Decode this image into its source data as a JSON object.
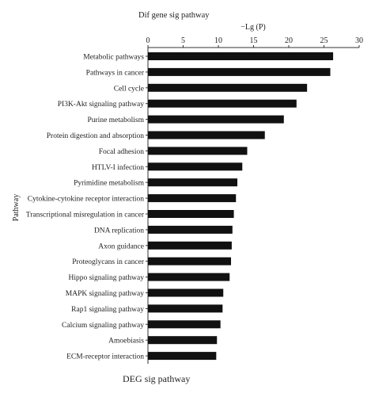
{
  "chart_data": {
    "type": "bar",
    "orientation": "horizontal",
    "title": "Dif gene sig pathway",
    "xlabel": "−Lg (P)",
    "ylabel": "Pathway",
    "footer": "DEG sig pathway",
    "xlim": [
      0,
      30
    ],
    "xticks": [
      0,
      5,
      10,
      15,
      20,
      25,
      30
    ],
    "x_axis_position": "top",
    "bar_color": "#111111",
    "grid": false,
    "categories": [
      "Metabolic pathways",
      "Pathways in cancer",
      "Cell cycle",
      "PI3K-Akt signaling pathway",
      "Purine metabolism",
      "Protein digestion and absorption",
      "Focal adhesion",
      "HTLV-I infection",
      "Pyrimidine metabolism",
      "Cytokine-cytokine receptor interaction",
      "Transcriptional misregulation in cancer",
      "DNA replication",
      "Axon guidance",
      "Proteoglycans in cancer",
      "Hippo signaling pathway",
      "MAPK signaling pathway",
      "Rap1 signaling pathway",
      "Calcium signaling pathway",
      "Amoebiasis",
      "ECM-receptor interaction"
    ],
    "values": [
      26.3,
      25.9,
      22.6,
      21.1,
      19.3,
      16.6,
      14.1,
      13.4,
      12.7,
      12.5,
      12.2,
      12.0,
      11.9,
      11.8,
      11.6,
      10.7,
      10.6,
      10.3,
      9.8,
      9.7
    ]
  }
}
